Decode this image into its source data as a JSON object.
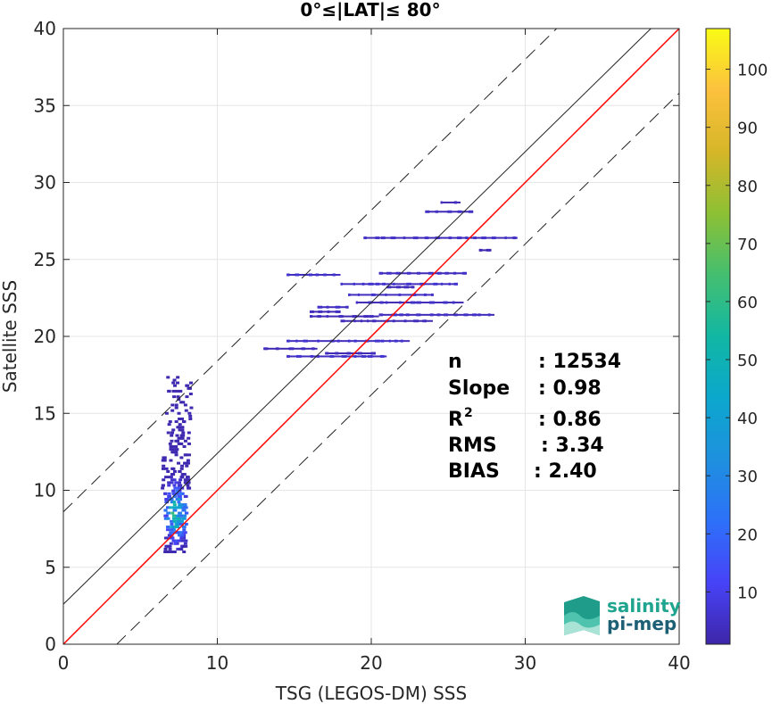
{
  "chart_data": {
    "type": "heatmap",
    "title": "0°≤|LAT|≤ 80°",
    "xlabel": "TSG (LEGOS-DM) SSS",
    "ylabel": "Satellite SSS",
    "xlim": [
      0,
      40
    ],
    "ylim": [
      0,
      40
    ],
    "xticks": [
      0,
      10,
      20,
      30,
      40
    ],
    "yticks": [
      0,
      5,
      10,
      15,
      20,
      25,
      30,
      35,
      40
    ],
    "grid": true,
    "lines": [
      {
        "kind": "identity",
        "color": "#ff0000",
        "style": "solid",
        "intercept": 0.0,
        "slope": 1.0
      },
      {
        "kind": "fit",
        "color": "#222222",
        "style": "solid",
        "intercept": 2.6,
        "slope": 0.98
      },
      {
        "kind": "upper-bound",
        "color": "#222222",
        "style": "dashed",
        "intercept": 8.6,
        "slope": 0.98
      },
      {
        "kind": "lower-bound",
        "color": "#222222",
        "style": "dashed",
        "intercept": -3.4,
        "slope": 0.98
      }
    ],
    "stats": [
      {
        "label": "n",
        "value": ": 12534"
      },
      {
        "label": "Slope",
        "value": ": 0.98"
      },
      {
        "label": "R",
        "sup": "2",
        "value": ": 0.86"
      },
      {
        "label": "RMS",
        "value": ": 3.34"
      },
      {
        "label": "BIAS",
        "value": ": 2.40"
      }
    ],
    "colorbar": {
      "min": 1,
      "max": 107,
      "ticks": [
        10,
        20,
        30,
        40,
        50,
        60,
        70,
        80,
        90,
        100
      ],
      "colormap": "parula"
    },
    "segments": [
      {
        "x0": 24.5,
        "x1": 25.8,
        "y": 28.7,
        "count": 2
      },
      {
        "x0": 23.5,
        "x1": 26.5,
        "y": 28.1,
        "count": 3
      },
      {
        "x0": 19.5,
        "x1": 29.5,
        "y": 26.4,
        "count": 3
      },
      {
        "x0": 27.0,
        "x1": 27.8,
        "y": 25.6,
        "count": 1
      },
      {
        "x0": 14.5,
        "x1": 18.0,
        "y": 24.0,
        "count": 4
      },
      {
        "x0": 20.5,
        "x1": 26.0,
        "y": 24.1,
        "count": 3
      },
      {
        "x0": 18.0,
        "x1": 25.5,
        "y": 23.4,
        "count": 4
      },
      {
        "x0": 21.0,
        "x1": 22.8,
        "y": 23.2,
        "count": 2
      },
      {
        "x0": 18.5,
        "x1": 24.0,
        "y": 22.7,
        "count": 4
      },
      {
        "x0": 19.0,
        "x1": 26.0,
        "y": 22.2,
        "count": 3
      },
      {
        "x0": 16.5,
        "x1": 18.5,
        "y": 21.9,
        "count": 3
      },
      {
        "x0": 16.0,
        "x1": 18.0,
        "y": 21.6,
        "count": 2
      },
      {
        "x0": 20.5,
        "x1": 28.0,
        "y": 21.4,
        "count": 3
      },
      {
        "x0": 16.0,
        "x1": 20.5,
        "y": 21.3,
        "count": 2
      },
      {
        "x0": 18.0,
        "x1": 24.0,
        "y": 21.0,
        "count": 2
      },
      {
        "x0": 14.5,
        "x1": 22.5,
        "y": 19.7,
        "count": 4
      },
      {
        "x0": 13.0,
        "x1": 16.5,
        "y": 19.2,
        "count": 2
      },
      {
        "x0": 17.0,
        "x1": 20.0,
        "y": 18.9,
        "count": 2
      },
      {
        "x0": 14.5,
        "x1": 21.0,
        "y": 18.7,
        "count": 4
      }
    ],
    "cluster": {
      "x_center": 7.2,
      "y_min": 6.0,
      "y_max": 17.5,
      "peak_y": 8.5,
      "peak_count": 107
    }
  },
  "logo": {
    "line1": "salinity",
    "line2": "pi-mep"
  }
}
